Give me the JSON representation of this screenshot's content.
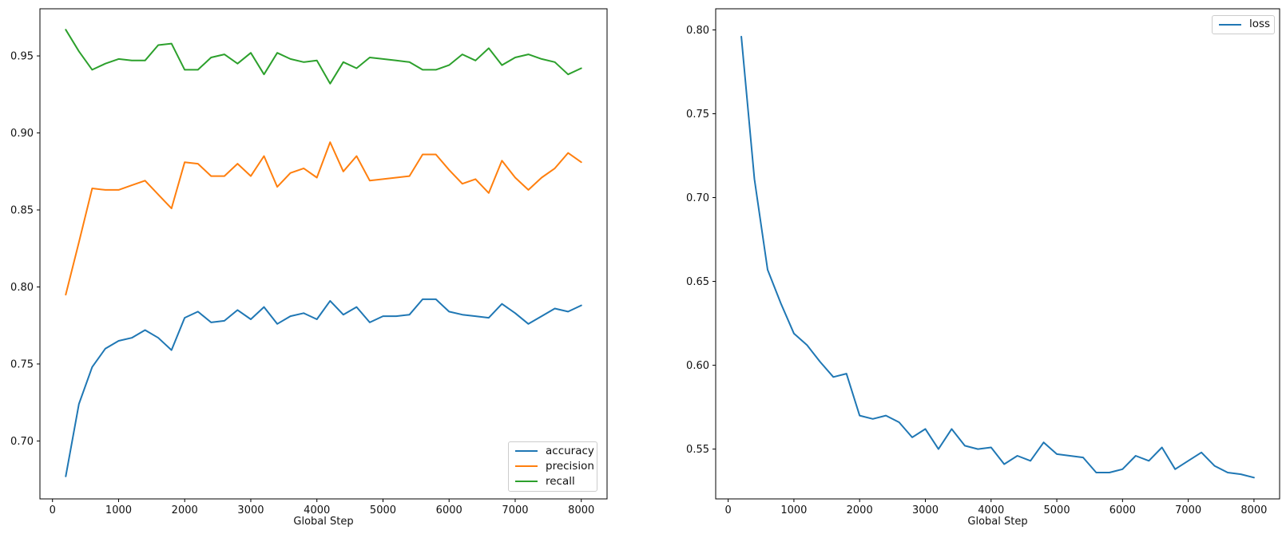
{
  "figure": {
    "background": "#ffffff"
  },
  "chart_data": [
    {
      "type": "line",
      "title": "",
      "xlabel": "Global Step",
      "ylabel": "",
      "grid": false,
      "legend_position": "lower right",
      "legend": [
        "accuracy",
        "precision",
        "recall"
      ],
      "xlim": [
        -190,
        8390
      ],
      "ylim": [
        0.6624,
        0.9806
      ],
      "xticks": [
        0,
        1000,
        2000,
        3000,
        4000,
        5000,
        6000,
        7000,
        8000
      ],
      "xtick_labels": [
        "0",
        "1000",
        "2000",
        "3000",
        "4000",
        "5000",
        "6000",
        "7000",
        "8000"
      ],
      "yticks": [
        0.7,
        0.75,
        0.8,
        0.85,
        0.9,
        0.95
      ],
      "ytick_labels": [
        "0.70",
        "0.75",
        "0.80",
        "0.85",
        "0.90",
        "0.95"
      ],
      "x": [
        200,
        400,
        600,
        800,
        1000,
        1200,
        1400,
        1600,
        1800,
        2000,
        2200,
        2400,
        2600,
        2800,
        3000,
        3200,
        3400,
        3600,
        3800,
        4000,
        4200,
        4400,
        4600,
        4800,
        5000,
        5200,
        5400,
        5600,
        5800,
        6000,
        6200,
        6400,
        6600,
        6800,
        7000,
        7200,
        7400,
        7600,
        7800,
        8000
      ],
      "series": [
        {
          "name": "accuracy",
          "color": "#1f77b4",
          "values": [
            0.677,
            0.724,
            0.748,
            0.76,
            0.765,
            0.767,
            0.772,
            0.767,
            0.759,
            0.78,
            0.784,
            0.777,
            0.778,
            0.785,
            0.779,
            0.787,
            0.776,
            0.781,
            0.783,
            0.779,
            0.791,
            0.782,
            0.787,
            0.777,
            0.781,
            0.781,
            0.782,
            0.792,
            0.792,
            0.784,
            0.782,
            0.781,
            0.78,
            0.789,
            0.783,
            0.776,
            0.781,
            0.786,
            0.784,
            0.788
          ]
        },
        {
          "name": "precision",
          "color": "#ff7f0e",
          "values": [
            0.795,
            0.829,
            0.864,
            0.863,
            0.863,
            0.866,
            0.869,
            0.86,
            0.851,
            0.881,
            0.88,
            0.872,
            0.872,
            0.88,
            0.872,
            0.885,
            0.865,
            0.874,
            0.877,
            0.871,
            0.894,
            0.875,
            0.885,
            0.869,
            0.87,
            0.871,
            0.872,
            0.886,
            0.886,
            0.876,
            0.867,
            0.87,
            0.861,
            0.882,
            0.871,
            0.863,
            0.871,
            0.877,
            0.887,
            0.881
          ]
        },
        {
          "name": "recall",
          "color": "#2ca02c",
          "values": [
            0.967,
            0.953,
            0.941,
            0.945,
            0.948,
            0.947,
            0.947,
            0.957,
            0.958,
            0.941,
            0.941,
            0.949,
            0.951,
            0.945,
            0.952,
            0.938,
            0.952,
            0.948,
            0.946,
            0.947,
            0.932,
            0.946,
            0.942,
            0.949,
            0.948,
            0.947,
            0.946,
            0.941,
            0.941,
            0.944,
            0.951,
            0.947,
            0.955,
            0.944,
            0.949,
            0.951,
            0.948,
            0.946,
            0.938,
            0.942
          ]
        }
      ]
    },
    {
      "type": "line",
      "title": "",
      "xlabel": "Global Step",
      "ylabel": "",
      "grid": false,
      "legend_position": "upper right",
      "legend": [
        "loss"
      ],
      "xlim": [
        -190,
        8390
      ],
      "ylim": [
        0.5203,
        0.8126
      ],
      "xticks": [
        0,
        1000,
        2000,
        3000,
        4000,
        5000,
        6000,
        7000,
        8000
      ],
      "xtick_labels": [
        "0",
        "1000",
        "2000",
        "3000",
        "4000",
        "5000",
        "6000",
        "7000",
        "8000"
      ],
      "yticks": [
        0.55,
        0.6,
        0.65,
        0.7,
        0.75,
        0.8
      ],
      "ytick_labels": [
        "0.55",
        "0.60",
        "0.65",
        "0.70",
        "0.75",
        "0.80"
      ],
      "x": [
        200,
        400,
        600,
        800,
        1000,
        1200,
        1400,
        1600,
        1800,
        2000,
        2200,
        2400,
        2600,
        2800,
        3000,
        3200,
        3400,
        3600,
        3800,
        4000,
        4200,
        4400,
        4600,
        4800,
        5000,
        5200,
        5400,
        5600,
        5800,
        6000,
        6200,
        6400,
        6600,
        6800,
        7000,
        7200,
        7400,
        7600,
        7800,
        8000
      ],
      "series": [
        {
          "name": "loss",
          "color": "#1f77b4",
          "values": [
            0.796,
            0.711,
            0.657,
            0.637,
            0.619,
            0.612,
            0.602,
            0.593,
            0.595,
            0.57,
            0.568,
            0.57,
            0.566,
            0.557,
            0.562,
            0.55,
            0.562,
            0.552,
            0.55,
            0.551,
            0.541,
            0.546,
            0.543,
            0.554,
            0.547,
            0.546,
            0.545,
            0.536,
            0.536,
            0.538,
            0.546,
            0.543,
            0.551,
            0.538,
            0.543,
            0.548,
            0.54,
            0.536,
            0.535,
            0.533
          ]
        }
      ]
    }
  ]
}
